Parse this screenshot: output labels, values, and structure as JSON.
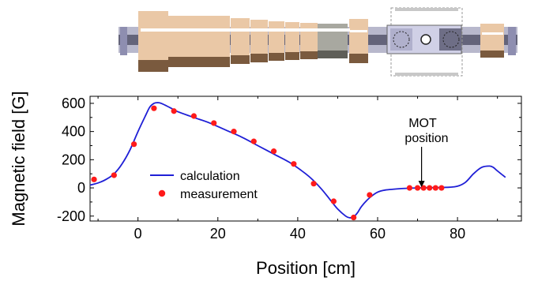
{
  "chart_data": {
    "type": "line",
    "xlabel": "Position [cm]",
    "ylabel": "Magnetic field [G]",
    "xlim": [
      -12,
      96
    ],
    "ylim": [
      -235,
      650
    ],
    "x_ticks": [
      0,
      20,
      40,
      60,
      80
    ],
    "y_ticks": [
      -200,
      0,
      200,
      400,
      600
    ],
    "x_tick_labels": [
      "0",
      "20",
      "40",
      "60",
      "80"
    ],
    "y_tick_labels": [
      "-200",
      "0",
      "200",
      "400",
      "600"
    ],
    "grid": false,
    "legend_placement": "middle-left",
    "series": [
      {
        "name": "calculation",
        "style": "line",
        "color": "#1f1fd6",
        "x": [
          -12,
          -10,
          -8,
          -6,
          -4,
          -2,
          0,
          2,
          3,
          4,
          5,
          6,
          8,
          10,
          14,
          18,
          22,
          26,
          30,
          34,
          38,
          42,
          44,
          46,
          48,
          50,
          52,
          53,
          54,
          55,
          56,
          58,
          60,
          62,
          66,
          70,
          74,
          78,
          80,
          82,
          84,
          86,
          88,
          89,
          90,
          92
        ],
        "y": [
          20,
          35,
          60,
          100,
          170,
          270,
          400,
          520,
          575,
          600,
          605,
          598,
          570,
          540,
          500,
          460,
          410,
          360,
          300,
          240,
          180,
          100,
          50,
          -10,
          -80,
          -150,
          -200,
          -212,
          -205,
          -175,
          -130,
          -70,
          -30,
          -15,
          -5,
          0,
          2,
          5,
          12,
          40,
          100,
          145,
          155,
          145,
          120,
          75
        ]
      },
      {
        "name": "measurement",
        "style": "markers",
        "color": "#ff1a1a",
        "x": [
          -11,
          -6,
          -1,
          4,
          9,
          14,
          19,
          24,
          29,
          34,
          39,
          44,
          49,
          54,
          58,
          68,
          70,
          71.5,
          73,
          74.5,
          76
        ],
        "y": [
          60,
          90,
          310,
          565,
          545,
          510,
          460,
          400,
          330,
          260,
          170,
          30,
          -95,
          -210,
          -50,
          0,
          0,
          0,
          0,
          0,
          0
        ]
      }
    ],
    "annotations": [
      {
        "text_lines": [
          "MOT",
          "position"
        ],
        "arrow_to": [
          71,
          5
        ]
      }
    ]
  }
}
